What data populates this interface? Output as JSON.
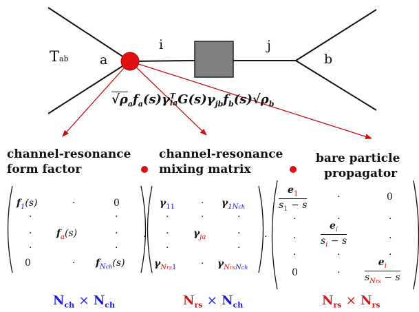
{
  "diagram": {
    "t_label": "T",
    "t_sub": "ab",
    "a": "a",
    "i": "i",
    "j": "j",
    "b": "b",
    "formula": {
      "part1": "√ρ",
      "sub_a": "a",
      "part2": "f",
      "part3": "(s)γ",
      "sup_T": "T",
      "sub_ia": "ia",
      "part4": "G(s)γ",
      "sub_jb": "jb",
      "part5": "f",
      "sub_b": "b",
      "part6": "(s)√ρ",
      "sub_b2": "b"
    }
  },
  "headings": {
    "ff_line1": "channel-resonance",
    "ff_line2": "form factor",
    "mm_line1": "channel-resonance",
    "mm_line2": "mixing matrix",
    "bp_line1": "bare particle",
    "bp_line2": "propagator"
  },
  "matrices": {
    "ff": {
      "f1": "f",
      "f1_sub": "1",
      "f1_arg": "(s)",
      "fa": "f",
      "fa_sub": "a",
      "fa_arg": "(s)",
      "fN": "f",
      "fN_sub": "N",
      "fN_subsub": "ch",
      "fN_arg": "(s)",
      "zero": "0",
      "dot": "·"
    },
    "mm": {
      "g": "γ",
      "s11": "11",
      "s1N": "1N",
      "s1N_sub": "ch",
      "sja": "ja",
      "sNr1": "N",
      "sNr1_sub": "rs",
      "sNr1_tail": "1",
      "sNrN": "N",
      "sNrN_sub": "rs",
      "sNrN_mid": "N",
      "sNrN_sub2": "ch"
    },
    "bp": {
      "e": "e",
      "s": "s",
      "one": "1",
      "i": "i",
      "N": "N",
      "rs": "rs",
      "minus_s": " − s",
      "zero": "0"
    },
    "times_dot": "·"
  },
  "dimensions": {
    "ff_left": "N",
    "ff_left_sub": "ch",
    "ff_right": "N",
    "ff_right_sub": "ch",
    "mm_left": "N",
    "mm_left_sub": "rs",
    "mm_right": "N",
    "mm_right_sub": "ch",
    "bp_left": "N",
    "bp_left_sub": "rs",
    "bp_right": "N",
    "bp_right_sub": "rs",
    "times": "×"
  },
  "colors": {
    "red": "#e01010",
    "blue": "#1a1ae6",
    "box_gray": "#808080"
  }
}
